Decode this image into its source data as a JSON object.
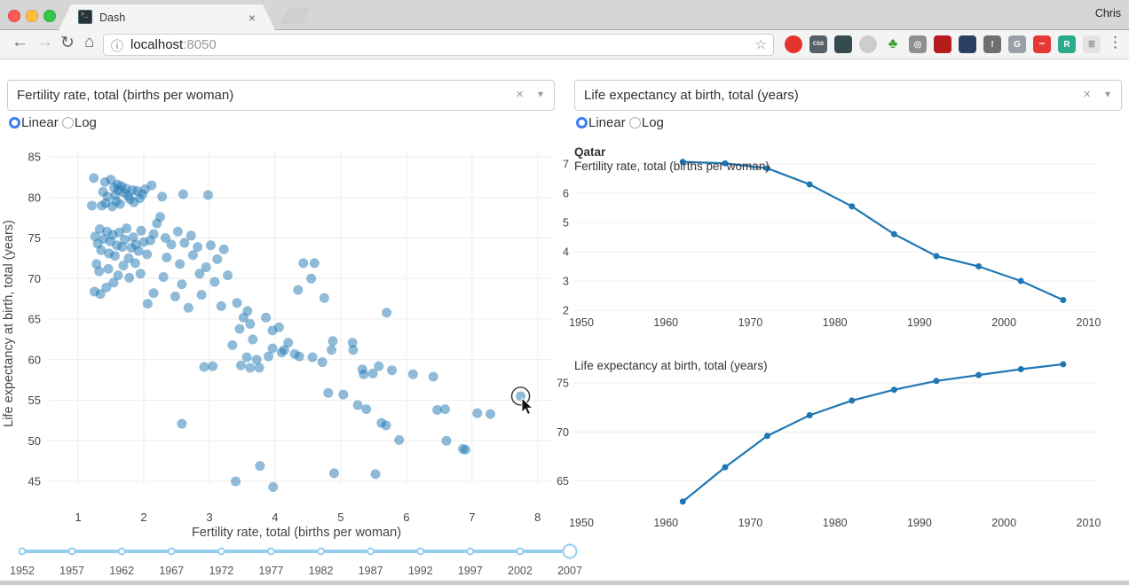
{
  "browser": {
    "profile_name": "Chris",
    "tab": {
      "title": "Dash",
      "favicon_glyph": ">_"
    },
    "url": {
      "host": "localhost",
      "port": ":8050"
    },
    "icons": {
      "back": "←",
      "forward": "→",
      "refresh": "↻",
      "home": "⌂",
      "info": "ⓘ",
      "star": "☆",
      "close": "×",
      "menu": "⋮"
    },
    "extensions": [
      {
        "name": "adblock-icon",
        "text": "",
        "bg": "#e2342d",
        "fg": "#ffffff",
        "shape": "circle"
      },
      {
        "name": "css-shield-icon",
        "text": "CSS",
        "bg": "#566066",
        "fg": "#ffffff",
        "shape": "square"
      },
      {
        "name": "evernote-icon",
        "text": "",
        "bg": "#344b50",
        "fg": "#ffffff",
        "shape": "square"
      },
      {
        "name": "swirl-icon",
        "text": "",
        "bg": "#cdcdcd",
        "fg": "#ffffff",
        "shape": "circle"
      },
      {
        "name": "bonsai-icon",
        "text": "♣",
        "bg": "none",
        "fg": "#3fa33a",
        "shape": "plain"
      },
      {
        "name": "camera-icon",
        "text": "◎",
        "bg": "#8f8f8f",
        "fg": "#eeeeee",
        "shape": "square"
      },
      {
        "name": "red-book-icon",
        "text": "",
        "bg": "#b71c1c",
        "fg": "#ffffff",
        "shape": "square"
      },
      {
        "name": "briefcase-icon",
        "text": "",
        "bg": "#2b3f63",
        "fg": "#ffffff",
        "shape": "square"
      },
      {
        "name": "warning-box-icon",
        "text": "!",
        "bg": "#6f6f6f",
        "fg": "#ffffff",
        "shape": "square"
      },
      {
        "name": "g-square-icon",
        "text": "G",
        "bg": "#9aa0a6",
        "fg": "#ffffff",
        "shape": "square"
      },
      {
        "name": "red-dots-icon",
        "text": "•••",
        "bg": "#e53935",
        "fg": "#ffffff",
        "shape": "square"
      },
      {
        "name": "r-square-icon",
        "text": "R",
        "bg": "#2bab8c",
        "fg": "#ffffff",
        "shape": "square"
      },
      {
        "name": "gray-badge-icon",
        "text": "≣",
        "bg": "#e3e3e3",
        "fg": "#9a9a9a",
        "shape": "square"
      }
    ]
  },
  "controls": {
    "x_dropdown": {
      "value": "Fertility rate, total (births per woman)"
    },
    "x_scale": {
      "options": [
        "Linear",
        "Log"
      ],
      "selected": "Linear"
    },
    "y_dropdown": {
      "value": "Life expectancy at birth, total (years)"
    },
    "y_scale": {
      "options": [
        "Linear",
        "Log"
      ],
      "selected": "Linear"
    }
  },
  "colors": {
    "plot_blue": "#1f77b4",
    "grid": "#ececec",
    "tick_text": "#444444",
    "slider_blue": "#96cfee",
    "radio_blue": "#3b7ff2"
  },
  "chart_data": [
    {
      "type": "scatter",
      "title": "",
      "xlabel": "Fertility rate, total (births per woman)",
      "ylabel": "Life expectancy at birth, total (years)",
      "xticks": [
        1,
        2,
        3,
        4,
        5,
        6,
        7,
        8
      ],
      "yticks": [
        45,
        50,
        55,
        60,
        65,
        70,
        75,
        80,
        85
      ],
      "xlim": [
        0.554,
        8.219
      ],
      "ylim": [
        44.57,
        85.66
      ],
      "marker_color": "#1f77b4",
      "marker_opacity": 0.5,
      "hover_point": [
        7.74,
        55.5
      ],
      "points": [
        [
          1.24,
          82.4
        ],
        [
          1.21,
          79.0
        ],
        [
          1.38,
          80.7
        ],
        [
          1.41,
          81.9
        ],
        [
          1.45,
          80.1
        ],
        [
          1.5,
          82.2
        ],
        [
          1.42,
          79.3
        ],
        [
          1.36,
          79.0
        ],
        [
          1.55,
          81.2
        ],
        [
          1.57,
          80.3
        ],
        [
          1.6,
          81.6
        ],
        [
          1.62,
          80.9
        ],
        [
          1.66,
          81.4
        ],
        [
          1.52,
          78.9
        ],
        [
          1.58,
          79.5
        ],
        [
          1.64,
          79.2
        ],
        [
          1.7,
          80.6
        ],
        [
          1.73,
          81.1
        ],
        [
          1.76,
          80.2
        ],
        [
          1.79,
          79.8
        ],
        [
          1.83,
          80.9
        ],
        [
          1.85,
          79.4
        ],
        [
          1.9,
          80.8
        ],
        [
          1.94,
          79.9
        ],
        [
          1.98,
          80.4
        ],
        [
          2.02,
          81.0
        ],
        [
          2.12,
          81.5
        ],
        [
          2.28,
          80.1
        ],
        [
          2.6,
          80.4
        ],
        [
          2.98,
          80.3
        ],
        [
          1.26,
          75.2
        ],
        [
          1.3,
          74.3
        ],
        [
          1.33,
          76.1
        ],
        [
          1.35,
          73.5
        ],
        [
          1.39,
          74.9
        ],
        [
          1.44,
          75.8
        ],
        [
          1.47,
          73.1
        ],
        [
          1.49,
          74.6
        ],
        [
          1.53,
          75.4
        ],
        [
          1.56,
          72.8
        ],
        [
          1.59,
          74.1
        ],
        [
          1.63,
          75.7
        ],
        [
          1.67,
          73.9
        ],
        [
          1.71,
          74.8
        ],
        [
          1.74,
          76.2
        ],
        [
          1.77,
          72.5
        ],
        [
          1.81,
          73.8
        ],
        [
          1.84,
          75.1
        ],
        [
          1.88,
          74.2
        ],
        [
          1.92,
          73.4
        ],
        [
          1.96,
          75.9
        ],
        [
          2.0,
          74.5
        ],
        [
          2.05,
          73.0
        ],
        [
          2.1,
          74.7
        ],
        [
          2.15,
          75.5
        ],
        [
          1.28,
          71.8
        ],
        [
          1.32,
          70.9
        ],
        [
          1.46,
          71.2
        ],
        [
          1.61,
          70.4
        ],
        [
          1.69,
          71.6
        ],
        [
          1.78,
          70.1
        ],
        [
          1.87,
          71.9
        ],
        [
          1.95,
          70.6
        ],
        [
          1.25,
          68.4
        ],
        [
          1.34,
          68.1
        ],
        [
          1.43,
          68.9
        ],
        [
          1.54,
          69.5
        ],
        [
          2.2,
          76.8
        ],
        [
          2.25,
          77.6
        ],
        [
          2.33,
          75.0
        ],
        [
          2.42,
          74.2
        ],
        [
          2.52,
          75.8
        ],
        [
          2.62,
          74.4
        ],
        [
          2.72,
          75.3
        ],
        [
          2.82,
          73.9
        ],
        [
          2.35,
          72.6
        ],
        [
          2.55,
          71.8
        ],
        [
          2.75,
          72.9
        ],
        [
          2.95,
          71.4
        ],
        [
          2.3,
          70.2
        ],
        [
          2.58,
          69.3
        ],
        [
          2.85,
          70.6
        ],
        [
          2.48,
          67.8
        ],
        [
          2.68,
          66.4
        ],
        [
          2.15,
          68.2
        ],
        [
          2.06,
          66.9
        ],
        [
          2.88,
          68.0
        ],
        [
          3.02,
          74.1
        ],
        [
          3.12,
          72.4
        ],
        [
          3.22,
          73.6
        ],
        [
          3.08,
          69.6
        ],
        [
          3.28,
          70.4
        ],
        [
          3.18,
          66.6
        ],
        [
          3.42,
          67.0
        ],
        [
          3.52,
          65.2
        ],
        [
          3.46,
          63.8
        ],
        [
          3.58,
          66.0
        ],
        [
          3.62,
          64.4
        ],
        [
          3.35,
          61.8
        ],
        [
          3.66,
          62.5
        ],
        [
          3.72,
          60.0
        ],
        [
          3.57,
          60.3
        ],
        [
          3.62,
          59.0
        ],
        [
          3.76,
          59.0
        ],
        [
          3.48,
          59.3
        ],
        [
          3.86,
          65.2
        ],
        [
          3.96,
          63.6
        ],
        [
          4.06,
          64.0
        ],
        [
          3.96,
          61.4
        ],
        [
          4.1,
          60.9
        ],
        [
          4.2,
          62.1
        ],
        [
          3.9,
          60.4
        ],
        [
          4.3,
          60.7
        ],
        [
          2.92,
          59.1
        ],
        [
          3.05,
          59.2
        ],
        [
          4.43,
          71.9
        ],
        [
          4.6,
          71.9
        ],
        [
          4.35,
          68.6
        ],
        [
          4.55,
          70.0
        ],
        [
          4.75,
          67.6
        ],
        [
          5.7,
          65.8
        ],
        [
          4.14,
          61.2
        ],
        [
          4.37,
          60.4
        ],
        [
          4.57,
          60.3
        ],
        [
          4.72,
          59.7
        ],
        [
          4.86,
          61.2
        ],
        [
          4.88,
          62.3
        ],
        [
          5.18,
          62.1
        ],
        [
          5.19,
          61.2
        ],
        [
          5.33,
          58.8
        ],
        [
          5.35,
          58.2
        ],
        [
          5.49,
          58.3
        ],
        [
          5.58,
          59.2
        ],
        [
          5.78,
          58.7
        ],
        [
          4.81,
          55.9
        ],
        [
          5.04,
          55.7
        ],
        [
          5.26,
          54.4
        ],
        [
          5.39,
          53.9
        ],
        [
          5.62,
          52.2
        ],
        [
          5.69,
          51.9
        ],
        [
          5.89,
          50.1
        ],
        [
          6.1,
          58.2
        ],
        [
          6.41,
          57.9
        ],
        [
          6.47,
          53.8
        ],
        [
          6.59,
          53.9
        ],
        [
          6.61,
          50.0
        ],
        [
          6.86,
          49.0
        ],
        [
          6.9,
          48.9
        ],
        [
          7.08,
          53.4
        ],
        [
          7.28,
          53.3
        ],
        [
          7.74,
          55.5
        ],
        [
          2.58,
          52.1
        ],
        [
          3.4,
          45.0
        ],
        [
          3.77,
          46.9
        ],
        [
          3.97,
          44.3
        ],
        [
          4.9,
          46.0
        ],
        [
          5.53,
          45.9
        ]
      ]
    },
    {
      "type": "line",
      "title": "Qatar",
      "subtitle": "Fertility rate, total (births per woman)",
      "x": [
        1962,
        1967,
        1972,
        1977,
        1982,
        1987,
        1992,
        1997,
        2002,
        2007
      ],
      "y": [
        7.07,
        7.02,
        6.85,
        6.3,
        5.55,
        4.6,
        3.85,
        3.5,
        3.0,
        2.35
      ],
      "xticks": [
        1950,
        1960,
        1970,
        1980,
        1990,
        2000,
        2010
      ],
      "yticks": [
        2,
        3,
        4,
        5,
        6,
        7
      ],
      "xlim": [
        1949.16,
        2010.9
      ],
      "ylim": [
        1.79,
        7.3
      ],
      "line_color": "#1f77b4"
    },
    {
      "type": "line",
      "title": "",
      "subtitle": "Life expectancy at birth, total (years)",
      "x": [
        1962,
        1967,
        1972,
        1977,
        1982,
        1987,
        1992,
        1997,
        2002,
        2007
      ],
      "y": [
        62.9,
        66.4,
        69.6,
        71.7,
        73.2,
        74.3,
        75.2,
        75.8,
        76.4,
        76.9
      ],
      "xticks": [
        1950,
        1960,
        1970,
        1980,
        1990,
        2000,
        2010
      ],
      "yticks": [
        65,
        70,
        75
      ],
      "xlim": [
        1949.16,
        2010.9
      ],
      "ylim": [
        62.53,
        77.89
      ],
      "line_color": "#1f77b4"
    }
  ],
  "slider": {
    "years": [
      1952,
      1957,
      1962,
      1967,
      1972,
      1977,
      1982,
      1987,
      1992,
      1997,
      2002,
      2007
    ],
    "selected": 2007
  }
}
